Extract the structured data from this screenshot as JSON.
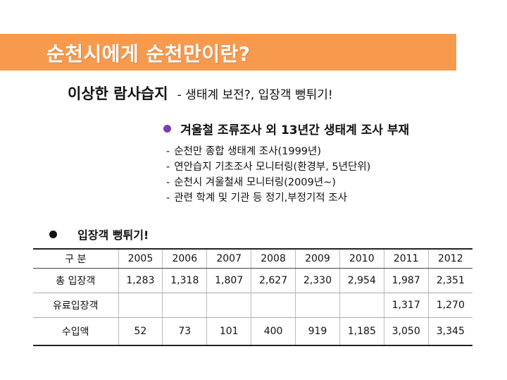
{
  "title": "순천시에게 순천만이란?",
  "subtitle": {
    "main": "이상한 람사습지",
    "note": "- 생태계 보전?, 입장객 뻥튀기!"
  },
  "bullet1": {
    "text": "겨울철 조류조사 외 13년간 생태계 조사 부재",
    "items": [
      "순천만 종합 생태계 조사(1999년)",
      "연안습지 기초조사 모니터링(환경부, 5년단위)",
      "순천시 겨울철새 모니터링(2009년~)",
      "관련 학계 및 기관 등 정기,부정기적 조사"
    ]
  },
  "bullet2": {
    "text": "입장객 뻥튀기!"
  },
  "table": {
    "header": [
      "구 분",
      "2005",
      "2006",
      "2007",
      "2008",
      "2009",
      "2010",
      "2011",
      "2012"
    ],
    "rows": [
      [
        "총 입장객",
        "1,283",
        "1,318",
        "1,807",
        "2,627",
        "2,330",
        "2,954",
        "1,987",
        "2,351"
      ],
      [
        "유료입장객",
        "",
        "",
        "",
        "",
        "",
        "",
        "1,317",
        "1,270"
      ],
      [
        "수입액",
        "52",
        "73",
        "101",
        "400",
        "919",
        "1,185",
        "3,050",
        "3,345"
      ]
    ]
  },
  "colors": {
    "title_bar": "#f79a4e",
    "bullet1_dot": "#7b3fb0"
  }
}
